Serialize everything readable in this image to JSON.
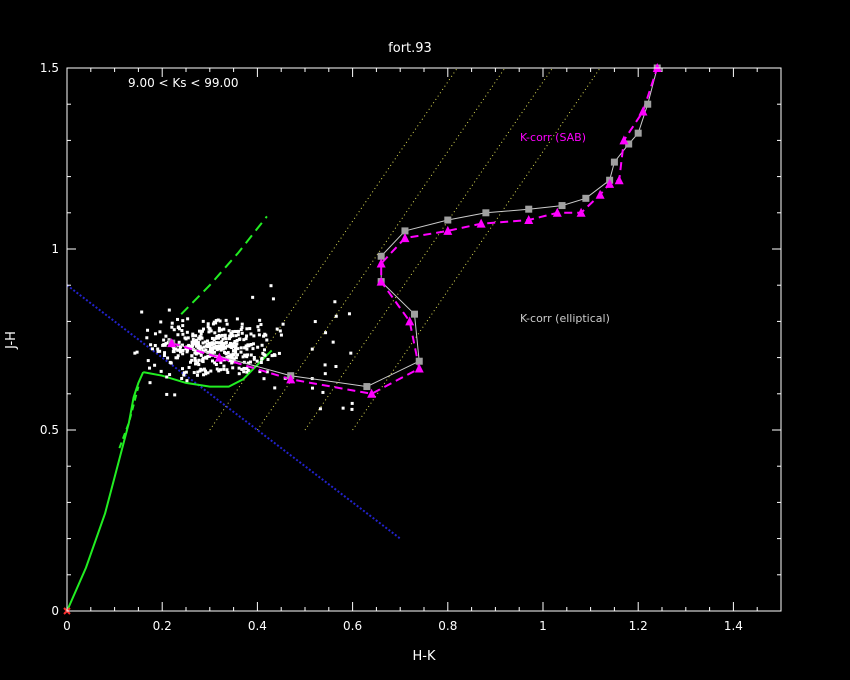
{
  "chart_data": {
    "type": "scatter",
    "title": "fort.93",
    "xlabel": "H-K",
    "ylabel": "J-H",
    "xlim": [
      0,
      1.5
    ],
    "ylim": [
      0,
      1.5
    ],
    "xticks": [
      "0",
      "0.2",
      "0.4",
      "0.6",
      "0.8",
      "1",
      "1.2",
      "1.4"
    ],
    "yticks": [
      "0",
      "0.5",
      "1",
      "1.5"
    ],
    "grid": false,
    "annotations": {
      "magnitude_range": "9.00 < Ks <  99.00",
      "kcorr_sab": "K-corr (SAB)",
      "kcorr_elliptical": "K-corr (elliptical)"
    },
    "colors": {
      "background": "#000000",
      "axes": "#ffffff",
      "stars": "#ffffff",
      "sab_track": "#ff00ff",
      "elliptical_track": "#cccccc",
      "elliptical_markers": "#a0a0a0",
      "stellar_locus": "#22ee22",
      "reddening_lines": "#dddd55",
      "blue_line": "#2222cc",
      "origin_marker": "#ff3030"
    },
    "series": [
      {
        "name": "K-corr (SAB)",
        "marker": "triangle",
        "line": "dashed",
        "x": [
          0.22,
          0.32,
          0.47,
          0.64,
          0.74,
          0.72,
          0.66,
          0.66,
          0.71,
          0.8,
          0.87,
          0.97,
          1.03,
          1.08,
          1.12,
          1.14,
          1.16,
          1.17,
          1.21,
          1.24
        ],
        "y": [
          0.74,
          0.7,
          0.64,
          0.6,
          0.67,
          0.8,
          0.91,
          0.96,
          1.03,
          1.05,
          1.07,
          1.08,
          1.1,
          1.1,
          1.15,
          1.18,
          1.19,
          1.3,
          1.38,
          1.5
        ]
      },
      {
        "name": "K-corr (elliptical)",
        "marker": "square",
        "line": "solid",
        "x": [
          0.22,
          0.47,
          0.63,
          0.74,
          0.73,
          0.66,
          0.66,
          0.71,
          0.8,
          0.88,
          0.97,
          1.04,
          1.09,
          1.14,
          1.15,
          1.18,
          1.2,
          1.22,
          1.24
        ],
        "y": [
          0.74,
          0.65,
          0.62,
          0.69,
          0.82,
          0.91,
          0.98,
          1.05,
          1.08,
          1.1,
          1.11,
          1.12,
          1.14,
          1.19,
          1.24,
          1.29,
          1.32,
          1.4,
          1.5
        ]
      }
    ]
  }
}
